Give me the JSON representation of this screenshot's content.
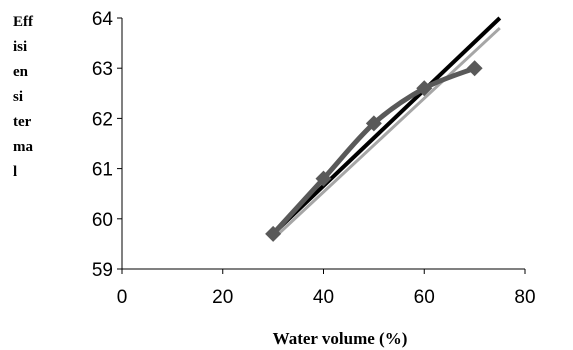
{
  "chart_data": {
    "type": "scatter",
    "xlabel": "Water volume (%)",
    "ylabel_lines": [
      "Eff",
      "isi",
      "en",
      "si",
      "ter",
      "ma",
      "l"
    ],
    "xlim": [
      0,
      80
    ],
    "ylim": [
      59,
      64
    ],
    "x_ticks": [
      "0",
      "20",
      "40",
      "60",
      "80"
    ],
    "y_ticks": [
      "59",
      "60",
      "61",
      "62",
      "63",
      "64"
    ],
    "grid": false,
    "series": [
      {
        "kind": "line-markers",
        "marker": "diamond",
        "color": "#595959",
        "x": [
          30,
          40,
          50,
          60,
          70
        ],
        "y": [
          59.7,
          60.8,
          61.9,
          62.6,
          63.0
        ]
      },
      {
        "kind": "trendline",
        "color": "#000000",
        "x": [
          30,
          75
        ],
        "y": [
          59.7,
          64.0
        ]
      },
      {
        "kind": "trendline",
        "color": "#a6a6a6",
        "x": [
          30,
          75
        ],
        "y": [
          59.6,
          63.8
        ]
      }
    ]
  }
}
